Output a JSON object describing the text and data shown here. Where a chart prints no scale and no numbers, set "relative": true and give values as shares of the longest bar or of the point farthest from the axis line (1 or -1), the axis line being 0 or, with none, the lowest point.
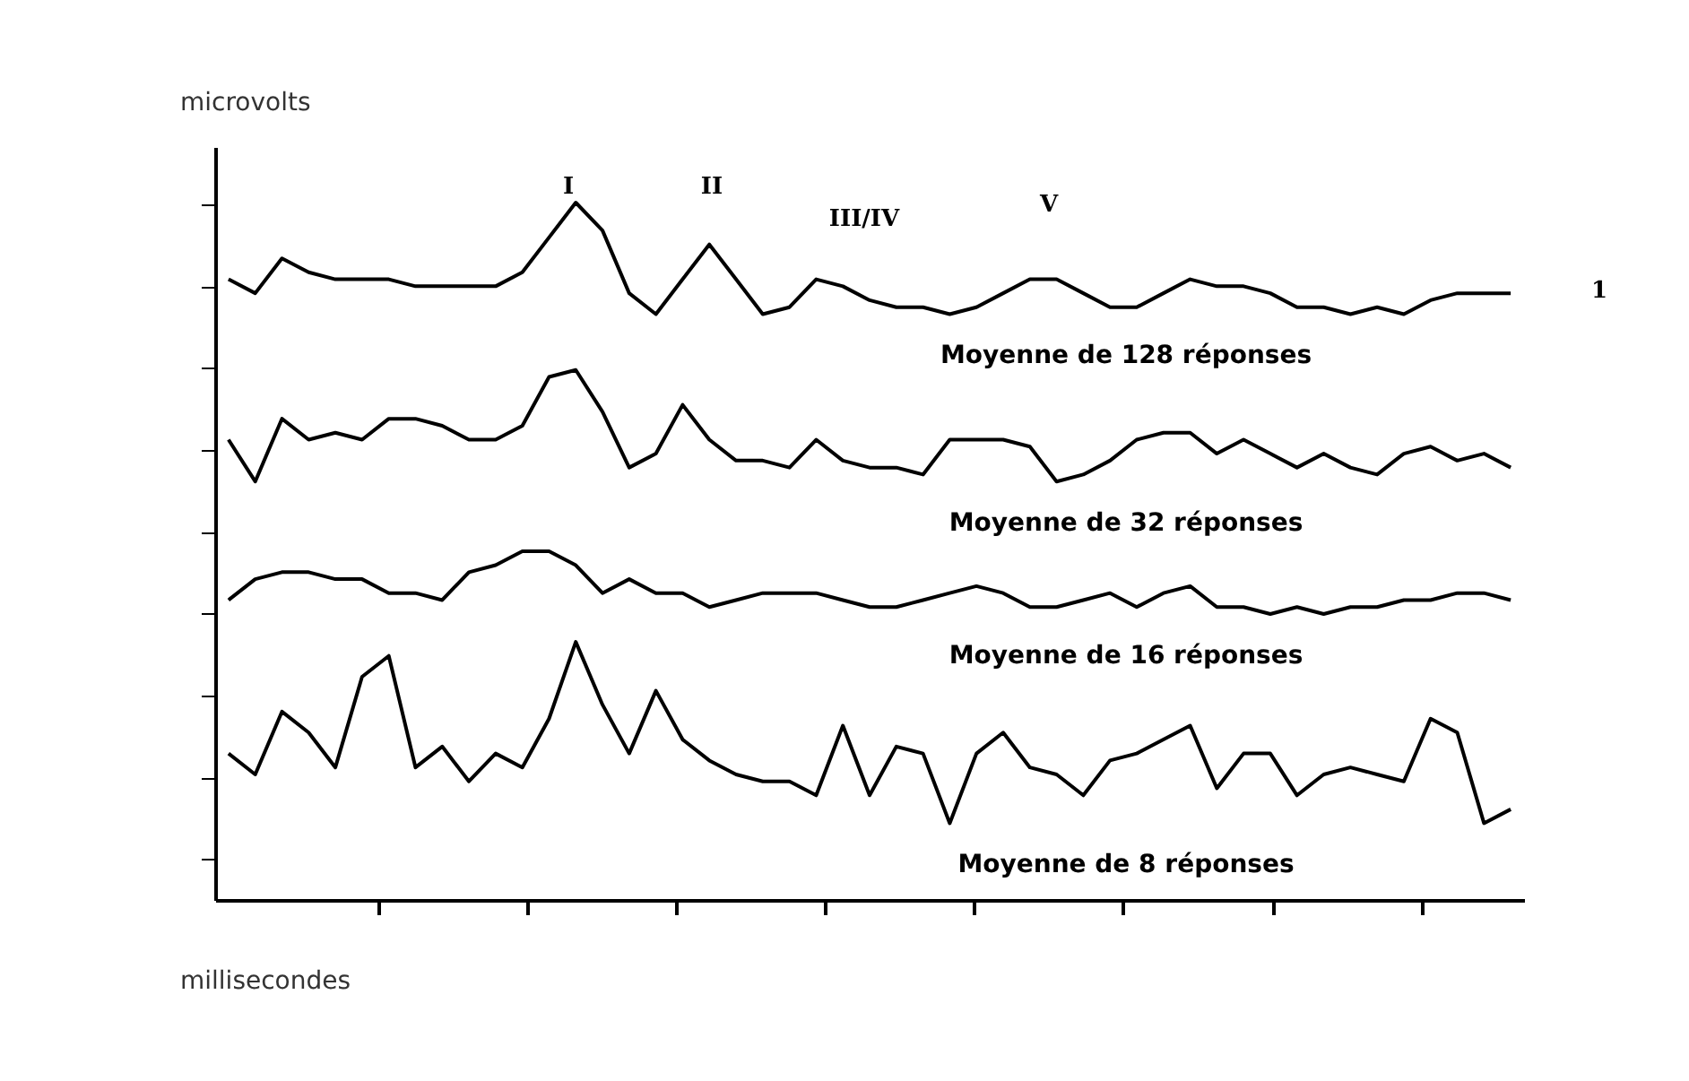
{
  "chart_data": {
    "type": "line",
    "relative": true,
    "xlabel": "millisecondes",
    "ylabel": "microvolts",
    "tick_labels": false,
    "legend": false,
    "grid": false,
    "categories": [
      null,
      null,
      null,
      null,
      null,
      null,
      null,
      null,
      null,
      null,
      null,
      null,
      null,
      null,
      null,
      null,
      null,
      null,
      null,
      null,
      null,
      null,
      null,
      null,
      null,
      null,
      null,
      null,
      null,
      null,
      null,
      null,
      null,
      null,
      null,
      null,
      null,
      null,
      null,
      null,
      null,
      null,
      null,
      null,
      null,
      null,
      null,
      null,
      null
    ],
    "annotations": [
      "I",
      "II",
      "III/IV",
      "V",
      "1"
    ],
    "series": [
      {
        "name": "Moyenne de 128 réponses",
        "color": "#000000",
        "values": [
          0.89,
          0.87,
          0.92,
          0.9,
          0.89,
          0.89,
          0.89,
          0.88,
          0.88,
          0.88,
          0.88,
          0.9,
          0.95,
          1.0,
          0.96,
          0.87,
          0.84,
          0.89,
          0.94,
          0.89,
          0.84,
          0.85,
          0.89,
          0.88,
          0.86,
          0.85,
          0.85,
          0.84,
          0.85,
          0.87,
          0.89,
          0.89,
          0.87,
          0.85,
          0.85,
          0.87,
          0.89,
          0.88,
          0.88,
          0.87,
          0.85,
          0.85,
          0.84,
          0.85,
          0.84,
          0.86,
          0.87,
          0.87,
          0.87
        ]
      },
      {
        "name": "Moyenne de 32 réponses",
        "color": "#000000",
        "values": [
          0.66,
          0.6,
          0.69,
          0.66,
          0.67,
          0.66,
          0.69,
          0.69,
          0.68,
          0.66,
          0.66,
          0.68,
          0.75,
          0.76,
          0.7,
          0.62,
          0.64,
          0.71,
          0.66,
          0.63,
          0.63,
          0.62,
          0.66,
          0.63,
          0.62,
          0.62,
          0.61,
          0.66,
          0.66,
          0.66,
          0.65,
          0.6,
          0.61,
          0.63,
          0.66,
          0.67,
          0.67,
          0.64,
          0.66,
          0.64,
          0.62,
          0.64,
          0.62,
          0.61,
          0.64,
          0.65,
          0.63,
          0.64,
          0.62
        ]
      },
      {
        "name": "Moyenne de 16 réponses",
        "color": "#000000",
        "values": [
          0.43,
          0.46,
          0.47,
          0.47,
          0.46,
          0.46,
          0.44,
          0.44,
          0.43,
          0.47,
          0.48,
          0.5,
          0.5,
          0.48,
          0.44,
          0.46,
          0.44,
          0.44,
          0.42,
          0.43,
          0.44,
          0.44,
          0.44,
          0.43,
          0.42,
          0.42,
          0.43,
          0.44,
          0.45,
          0.44,
          0.42,
          0.42,
          0.43,
          0.44,
          0.42,
          0.44,
          0.45,
          0.42,
          0.42,
          0.41,
          0.42,
          0.41,
          0.42,
          0.42,
          0.43,
          0.43,
          0.44,
          0.44,
          0.43
        ]
      },
      {
        "name": "Moyenne de 8 réponses",
        "color": "#000000",
        "values": [
          0.21,
          0.18,
          0.27,
          0.24,
          0.19,
          0.32,
          0.35,
          0.19,
          0.22,
          0.17,
          0.21,
          0.19,
          0.26,
          0.37,
          0.28,
          0.21,
          0.3,
          0.23,
          0.2,
          0.18,
          0.17,
          0.17,
          0.15,
          0.25,
          0.15,
          0.22,
          0.21,
          0.11,
          0.21,
          0.24,
          0.19,
          0.18,
          0.15,
          0.2,
          0.21,
          0.23,
          0.25,
          0.16,
          0.21,
          0.21,
          0.15,
          0.18,
          0.19,
          0.18,
          0.17,
          0.26,
          0.24,
          0.11,
          0.13
        ]
      }
    ]
  }
}
